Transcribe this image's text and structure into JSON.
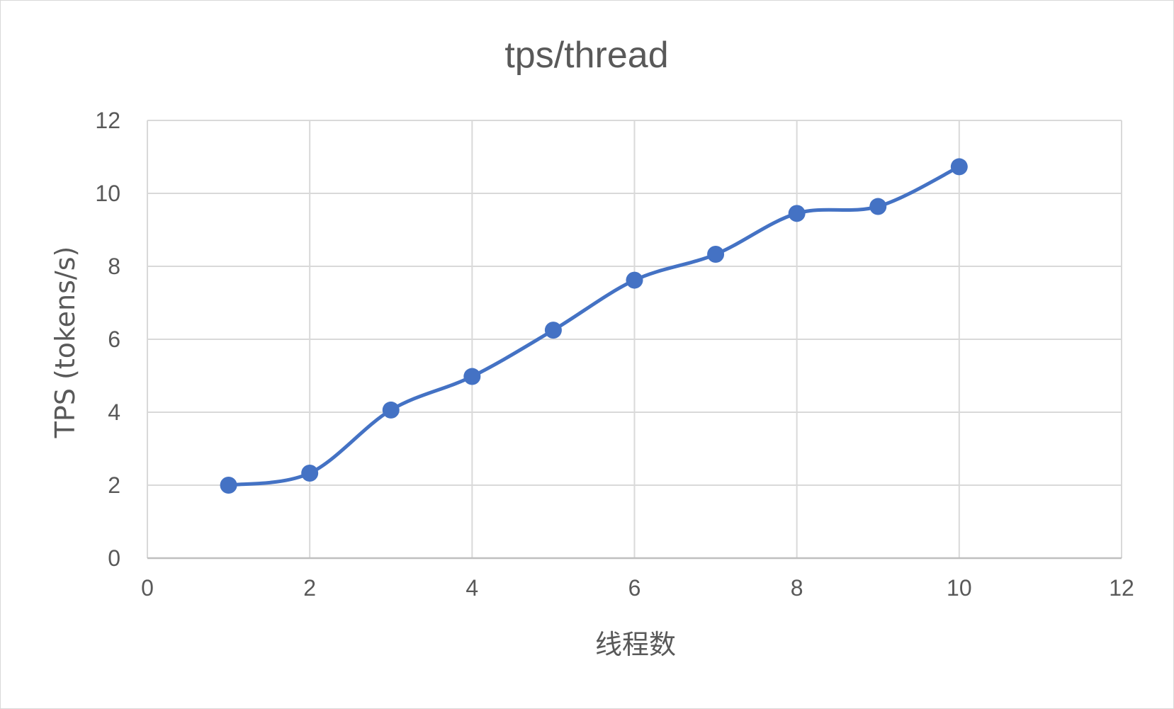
{
  "chart_data": {
    "type": "scatter",
    "title": "tps/thread",
    "xlabel": "线程数",
    "ylabel": "TPS (tokens/s)",
    "xlim": [
      0,
      12
    ],
    "ylim": [
      0,
      12
    ],
    "xticks": [
      "0",
      "2",
      "4",
      "6",
      "8",
      "10",
      "12"
    ],
    "yticks": [
      "0",
      "2",
      "4",
      "6",
      "8",
      "10",
      "12"
    ],
    "grid": true,
    "smooth": true,
    "legend": "none",
    "series": [
      {
        "color": "#4472C4",
        "x": [
          1,
          2,
          3,
          4,
          5,
          6,
          7,
          8,
          9,
          10
        ],
        "y": [
          2.0,
          2.33,
          4.06,
          4.98,
          6.25,
          7.62,
          8.33,
          9.45,
          9.64,
          10.73
        ]
      }
    ]
  }
}
